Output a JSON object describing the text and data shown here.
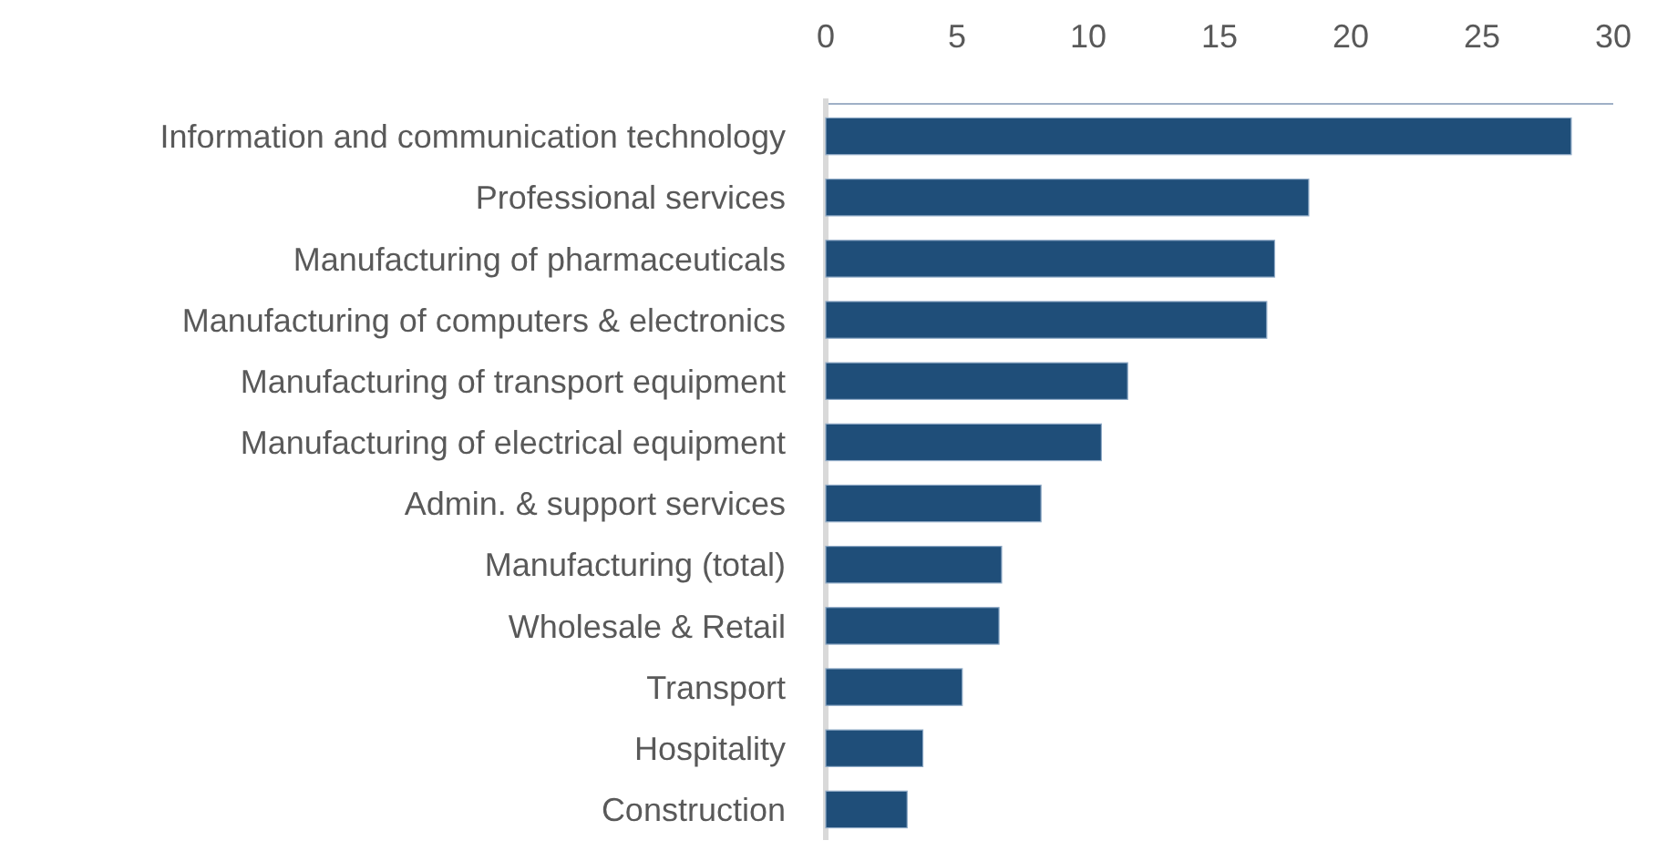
{
  "chart_data": {
    "type": "bar",
    "orientation": "horizontal",
    "categories": [
      "Information and communication technology",
      "Professional services",
      "Manufacturing of pharmaceuticals",
      "Manufacturing of computers & electronics",
      "Manufacturing of transport equipment",
      "Manufacturing of electrical equipment",
      "Admin. & support services",
      "Manufacturing (total)",
      "Wholesale & Retail",
      "Transport",
      "Hospitality",
      "Construction"
    ],
    "values": [
      28.4,
      18.4,
      17.1,
      16.8,
      11.5,
      10.5,
      8.2,
      6.7,
      6.6,
      5.2,
      3.7,
      3.1
    ],
    "color": "#1f4e79",
    "xlim": [
      0,
      30
    ],
    "xticks": [
      0,
      5,
      10,
      15,
      20,
      25,
      30
    ]
  }
}
